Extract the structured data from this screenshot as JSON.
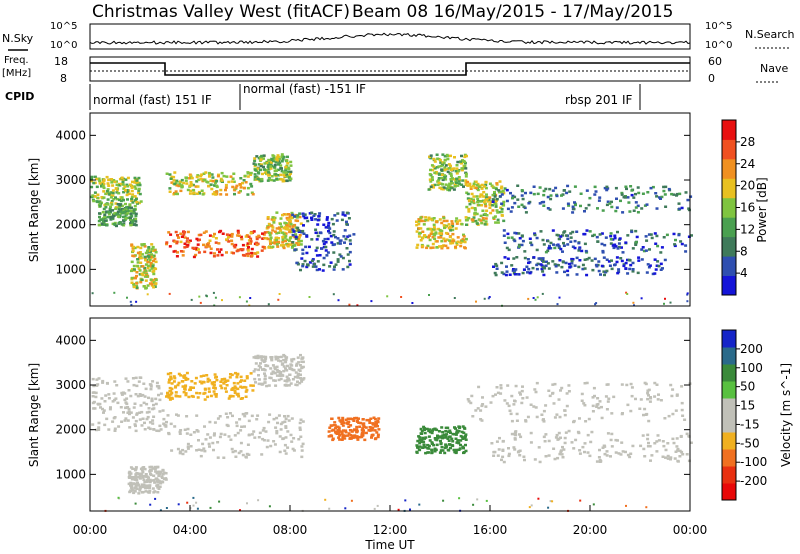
{
  "header": {
    "title_site": "Christmas Valley West (fitACF)",
    "title_beam": "Beam 08 16/May/2015 - 17/May/2015"
  },
  "top_strip": {
    "nsky_label": "N.Sky",
    "nsearch_label": "N.Search",
    "noise_ticks_left": [
      "10^5",
      "10^0"
    ],
    "noise_ticks_right": [
      "10^5",
      "10^0"
    ],
    "freq_label_top": "Freq.",
    "freq_label_bottom": "[MHz]",
    "freq_ticks": [
      "18",
      "8"
    ],
    "nave_label": "Nave",
    "nave_ticks": [
      "60",
      "0"
    ],
    "cpid_label": "CPID",
    "cpid_segments": [
      {
        "label": "normal (fast) 151 IF",
        "start_hr": 0,
        "end_hr": 6
      },
      {
        "label": "normal (fast) -151 IF",
        "start_hr": 6,
        "end_hr": 22
      },
      {
        "label": "rbsp 201 IF",
        "start_hr": 22,
        "end_hr": 24
      }
    ]
  },
  "colors": {
    "power_scale": [
      "#1515d8",
      "#2f4fb0",
      "#3f7a5a",
      "#4aa050",
      "#7fc440",
      "#e8c020",
      "#f09020",
      "#f05020",
      "#e81010"
    ],
    "velocity_scale": [
      "#1525c8",
      "#2a6a8a",
      "#3a8a3a",
      "#58c040",
      "#c0c0b8",
      "#c0c0b8",
      "#f0b020",
      "#f07020",
      "#e83010",
      "#e80808"
    ],
    "groundscatter": "#c0c0b8"
  },
  "chart_data": [
    {
      "type": "heatmap",
      "panel": "power",
      "ylabel": "Slant Range [km]",
      "ylim": [
        180,
        4500
      ],
      "yticks": [
        1000,
        2000,
        3000,
        4000
      ],
      "xlim_hr": [
        0,
        24
      ],
      "colorbar_label": "Power [dB]",
      "colorbar_ticks": [
        "4",
        "8",
        "12",
        "16",
        "20",
        "24",
        "28"
      ],
      "colorbar_range": [
        0,
        30
      ],
      "bands": [
        {
          "t": [
            0.0,
            2.0
          ],
          "r": [
            2500,
            3100
          ],
          "level": 15
        },
        {
          "t": [
            0.3,
            1.8
          ],
          "r": [
            2000,
            2500
          ],
          "level": 12
        },
        {
          "t": [
            1.6,
            2.6
          ],
          "r": [
            600,
            1600
          ],
          "level": 17
        },
        {
          "t": [
            3.0,
            7.0
          ],
          "r": [
            1300,
            1900
          ],
          "level": 24
        },
        {
          "t": [
            7.0,
            8.4
          ],
          "r": [
            1500,
            2300
          ],
          "level": 18
        },
        {
          "t": [
            3.0,
            6.5
          ],
          "r": [
            2700,
            3200
          ],
          "level": 17
        },
        {
          "t": [
            6.5,
            8.0
          ],
          "r": [
            3000,
            3600
          ],
          "level": 14
        },
        {
          "t": [
            8.0,
            10.5
          ],
          "r": [
            1000,
            2300
          ],
          "level": 5
        },
        {
          "t": [
            13.0,
            15.0
          ],
          "r": [
            1500,
            2200
          ],
          "level": 18
        },
        {
          "t": [
            13.5,
            15.0
          ],
          "r": [
            2800,
            3600
          ],
          "level": 14
        },
        {
          "t": [
            15.0,
            16.5
          ],
          "r": [
            2000,
            3000
          ],
          "level": 16
        },
        {
          "t": [
            16.0,
            24.0
          ],
          "r": [
            2300,
            2900
          ],
          "level": 8
        },
        {
          "t": [
            16.5,
            24.0
          ],
          "r": [
            1400,
            1900
          ],
          "level": 6
        },
        {
          "t": [
            16.0,
            23.0
          ],
          "r": [
            900,
            1300
          ],
          "level": 5
        }
      ]
    },
    {
      "type": "heatmap",
      "panel": "velocity",
      "ylabel": "Slant Range [km]",
      "ylim": [
        180,
        4500
      ],
      "yticks": [
        1000,
        2000,
        3000,
        4000
      ],
      "xlim_hr": [
        0,
        24
      ],
      "colorbar_label": "Velocity [m s^-1]",
      "colorbar_ticks": [
        "200",
        "100",
        "50",
        "15",
        "-15",
        "-50",
        "-100",
        "-200"
      ],
      "colorbar_range": [
        -250,
        250
      ],
      "xlabel": "Time UT",
      "xticks": [
        "00:00",
        "04:00",
        "08:00",
        "12:00",
        "16:00",
        "20:00",
        "00:00"
      ],
      "bands": [
        {
          "t": [
            0.0,
            3.0
          ],
          "r": [
            2000,
            3200
          ],
          "value": 0
        },
        {
          "t": [
            3.0,
            8.5
          ],
          "r": [
            1400,
            2400
          ],
          "value": 0
        },
        {
          "t": [
            3.0,
            6.5
          ],
          "r": [
            2700,
            3300
          ],
          "value": -60
        },
        {
          "t": [
            6.5,
            8.5
          ],
          "r": [
            3000,
            3700
          ],
          "value": 0
        },
        {
          "t": [
            9.5,
            11.5
          ],
          "r": [
            1800,
            2300
          ],
          "value": -90
        },
        {
          "t": [
            13.0,
            15.0
          ],
          "r": [
            1500,
            2100
          ],
          "value": 45
        },
        {
          "t": [
            15.0,
            24.0
          ],
          "r": [
            2200,
            3100
          ],
          "value": 0
        },
        {
          "t": [
            16.0,
            24.0
          ],
          "r": [
            1300,
            2000
          ],
          "value": 0
        },
        {
          "t": [
            1.5,
            3.0
          ],
          "r": [
            600,
            1200
          ],
          "value": 0
        }
      ]
    }
  ]
}
